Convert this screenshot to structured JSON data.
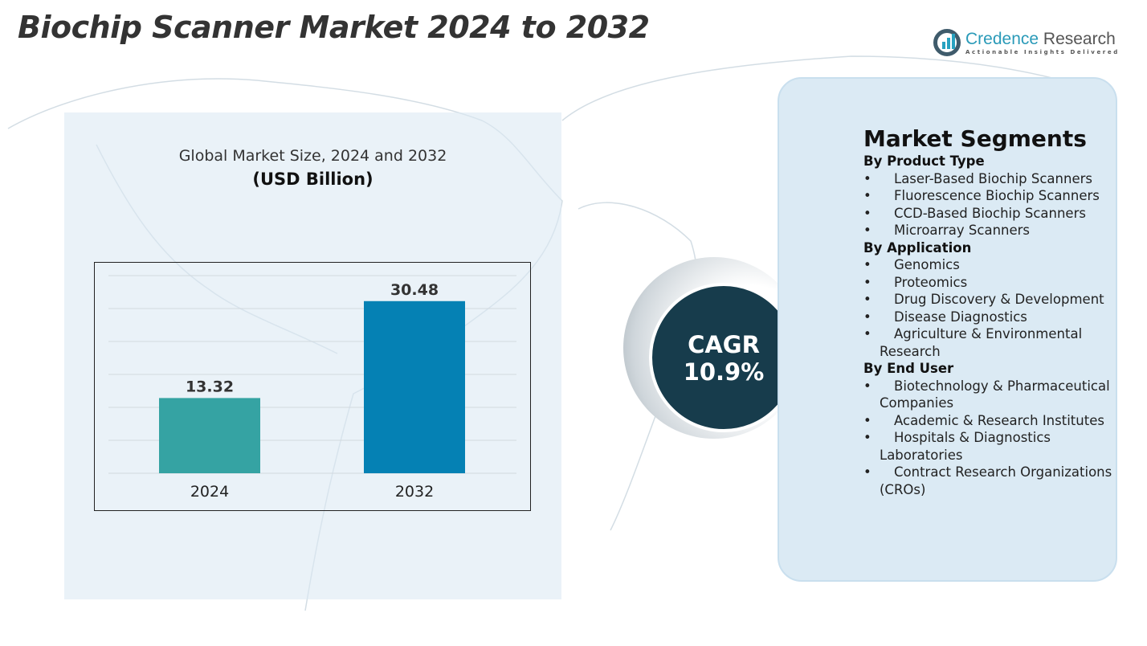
{
  "title": "Biochip Scanner Market 2024 to 2032",
  "logo": {
    "name_part1": "Credence",
    "name_part2": " Research",
    "tagline": "Actionable Insights Delivered"
  },
  "chart_data": {
    "type": "bar",
    "title": "Global Market Size, 2024 and 2032",
    "subtitle": "(USD Billion)",
    "categories": [
      "2024",
      "2032"
    ],
    "values": [
      13.32,
      30.48
    ],
    "value_labels": [
      "13.32",
      "30.48"
    ],
    "colors": [
      "#35a3a3",
      "#0581b4"
    ],
    "ylim": [
      0,
      35
    ],
    "grid": true
  },
  "cagr": {
    "label": "CAGR",
    "value": "10.9%"
  },
  "segments": {
    "title": "Market Segments",
    "groups": [
      {
        "heading": "By Product Type",
        "items": [
          "Laser-Based Biochip Scanners",
          "Fluorescence Biochip Scanners",
          "CCD-Based Biochip Scanners",
          "Microarray Scanners"
        ]
      },
      {
        "heading": "By Application",
        "items": [
          "Genomics",
          "Proteomics",
          "Drug Discovery & Development",
          "Disease Diagnostics",
          "Agriculture & Environmental Research"
        ]
      },
      {
        "heading": "By End User",
        "items": [
          "Biotechnology & Pharmaceutical Companies",
          "Academic & Research Institutes",
          "Hospitals & Diagnostics Laboratories",
          "Contract Research Organizations (CROs)"
        ]
      }
    ]
  }
}
